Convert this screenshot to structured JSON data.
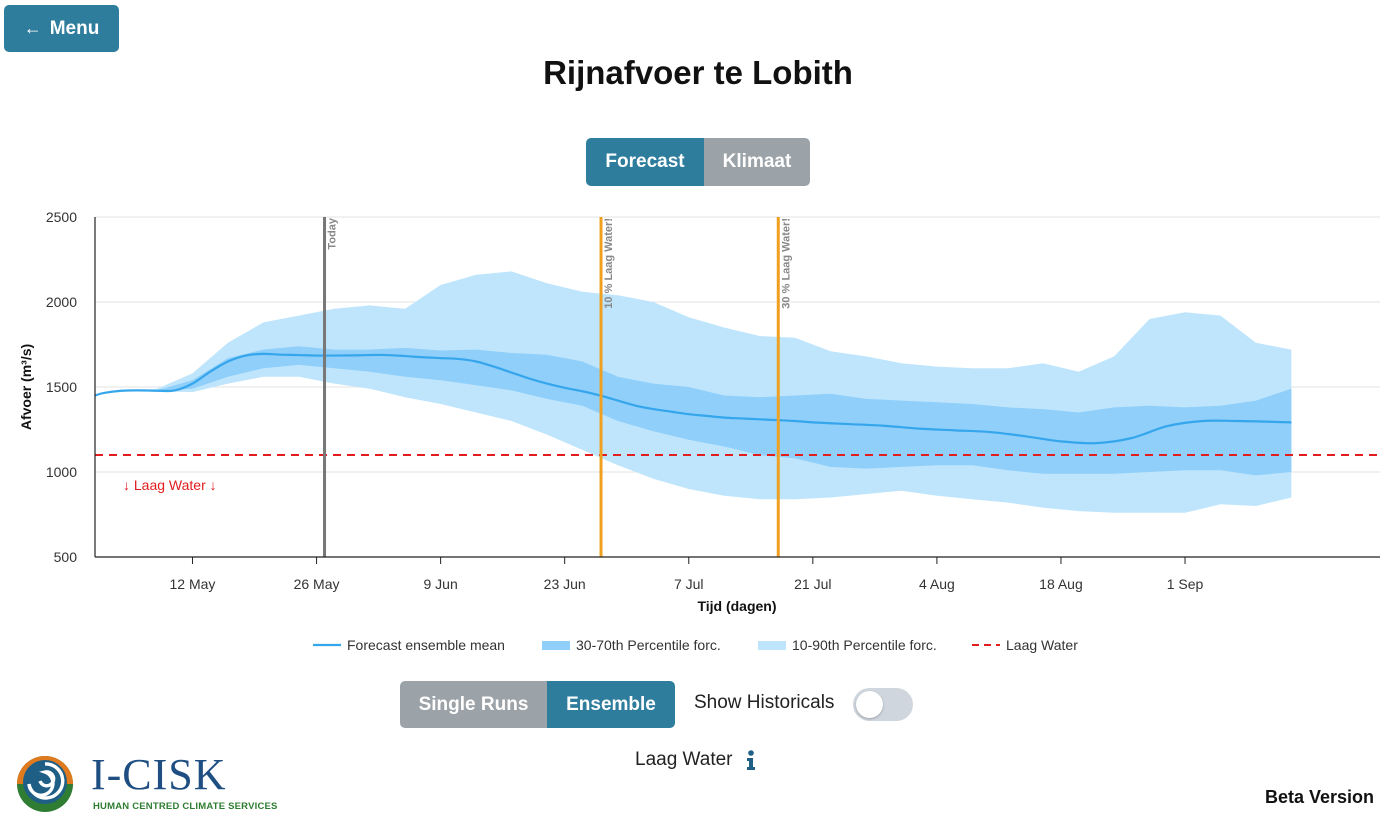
{
  "nav": {
    "menu_label": "Menu"
  },
  "page": {
    "title": "Rijnafvoer te Lobith"
  },
  "mode_toggle": {
    "options": [
      "Forecast",
      "Klimaat"
    ],
    "active": "Forecast"
  },
  "run_toggle": {
    "options": [
      "Single Runs",
      "Ensemble"
    ],
    "active": "Ensemble"
  },
  "historicals": {
    "label": "Show Historicals",
    "on": false
  },
  "info": {
    "label": "Laag Water"
  },
  "brand": {
    "title": "I-CISK",
    "subtitle": "HUMAN CENTRED CLIMATE SERVICES"
  },
  "footer": {
    "beta": "Beta Version"
  },
  "colors": {
    "accent": "#2f7d9d",
    "inactive": "#9ca3a8",
    "mean": "#35a6ec",
    "band_inner": "#8fcffa",
    "band_outer": "#bfe5fc",
    "threshold": "#e11d1d",
    "today": "#777777",
    "marker": "#f0a020"
  },
  "chart_data": {
    "type": "area",
    "ylabel": "Afvoer (m³/s)",
    "xlabel": "Tijd (dagen)",
    "ylim": [
      500,
      2500
    ],
    "yticks": [
      500,
      1000,
      1500,
      2000,
      2500
    ],
    "x_start_day": 0,
    "x_end_day": 145,
    "x_start_label": "2025-05-01",
    "xticks": [
      {
        "day": 11,
        "label": "12 May"
      },
      {
        "day": 25,
        "label": "26 May"
      },
      {
        "day": 39,
        "label": "9 Jun"
      },
      {
        "day": 53,
        "label": "23 Jun"
      },
      {
        "day": 67,
        "label": "7 Jul"
      },
      {
        "day": 81,
        "label": "21 Jul"
      },
      {
        "day": 95,
        "label": "4 Aug"
      },
      {
        "day": 109,
        "label": "18 Aug"
      },
      {
        "day": 123,
        "label": "1 Sep"
      }
    ],
    "threshold": {
      "value": 1100,
      "label": "↓ Laag Water ↓"
    },
    "vlines": [
      {
        "day": 25.9,
        "label": "Today",
        "kind": "today"
      },
      {
        "day": 57.1,
        "label": "10 % Laag Water!",
        "kind": "marker"
      },
      {
        "day": 77.1,
        "label": "30 % Laag Water!",
        "kind": "marker"
      }
    ],
    "series": [
      {
        "name": "Forecast ensemble mean",
        "days": [
          0,
          1,
          3,
          5,
          7,
          9,
          11,
          13,
          15,
          17,
          19,
          21,
          23,
          25,
          27,
          29,
          31,
          33,
          35,
          37,
          39,
          41,
          43,
          45,
          47,
          49,
          51,
          53,
          55,
          57,
          59,
          61,
          63,
          65,
          67,
          69,
          71,
          73,
          75,
          77,
          79,
          81,
          85,
          89,
          93,
          97,
          101,
          105,
          109,
          113,
          117,
          121,
          125,
          129,
          133,
          135
        ],
        "values": [
          1450,
          1465,
          1478,
          1480,
          1478,
          1480,
          1520,
          1590,
          1650,
          1685,
          1695,
          1690,
          1688,
          1685,
          1685,
          1686,
          1688,
          1688,
          1682,
          1675,
          1670,
          1665,
          1650,
          1620,
          1585,
          1550,
          1520,
          1495,
          1475,
          1450,
          1420,
          1390,
          1370,
          1355,
          1340,
          1330,
          1320,
          1315,
          1310,
          1305,
          1300,
          1292,
          1282,
          1272,
          1255,
          1245,
          1235,
          1210,
          1180,
          1170,
          1200,
          1270,
          1300,
          1300,
          1295,
          1292
        ]
      },
      {
        "name": "30-70th Percentile forc.",
        "days": [
          0,
          3,
          7,
          11,
          15,
          19,
          23,
          27,
          31,
          35,
          39,
          43,
          47,
          51,
          55,
          59,
          63,
          67,
          71,
          75,
          79,
          83,
          87,
          91,
          95,
          99,
          103,
          107,
          111,
          115,
          119,
          123,
          127,
          131,
          135
        ],
        "upper": [
          1450,
          1478,
          1480,
          1540,
          1670,
          1720,
          1740,
          1720,
          1720,
          1730,
          1715,
          1720,
          1700,
          1690,
          1650,
          1560,
          1520,
          1500,
          1450,
          1440,
          1450,
          1460,
          1430,
          1420,
          1410,
          1400,
          1380,
          1370,
          1350,
          1380,
          1390,
          1380,
          1390,
          1420,
          1490
        ],
        "lower": [
          1450,
          1478,
          1478,
          1490,
          1560,
          1610,
          1630,
          1610,
          1590,
          1560,
          1540,
          1510,
          1480,
          1430,
          1390,
          1300,
          1240,
          1190,
          1150,
          1100,
          1080,
          1030,
          1020,
          1030,
          1040,
          1040,
          1010,
          990,
          990,
          990,
          1000,
          1010,
          1010,
          980,
          1000
        ]
      },
      {
        "name": "10-90th Percentile forc.",
        "days": [
          0,
          3,
          7,
          11,
          15,
          19,
          23,
          27,
          31,
          35,
          39,
          43,
          47,
          51,
          55,
          59,
          63,
          67,
          71,
          75,
          79,
          83,
          87,
          91,
          95,
          99,
          103,
          107,
          111,
          115,
          119,
          123,
          127,
          131,
          135
        ],
        "upper": [
          1450,
          1480,
          1490,
          1580,
          1760,
          1880,
          1920,
          1960,
          1980,
          1960,
          2100,
          2160,
          2180,
          2110,
          2060,
          2040,
          2000,
          1910,
          1850,
          1800,
          1790,
          1710,
          1680,
          1640,
          1620,
          1610,
          1610,
          1640,
          1590,
          1680,
          1900,
          1940,
          1920,
          1760,
          1720
        ],
        "lower": [
          1450,
          1476,
          1476,
          1470,
          1520,
          1560,
          1560,
          1520,
          1490,
          1440,
          1400,
          1350,
          1300,
          1220,
          1130,
          1040,
          960,
          900,
          860,
          840,
          840,
          850,
          870,
          890,
          860,
          840,
          820,
          790,
          770,
          760,
          760,
          760,
          810,
          800,
          850
        ]
      }
    ],
    "legend": [
      "Forecast ensemble mean",
      "30-70th Percentile forc.",
      "10-90th Percentile forc.",
      "Laag Water"
    ],
    "grid": true
  }
}
